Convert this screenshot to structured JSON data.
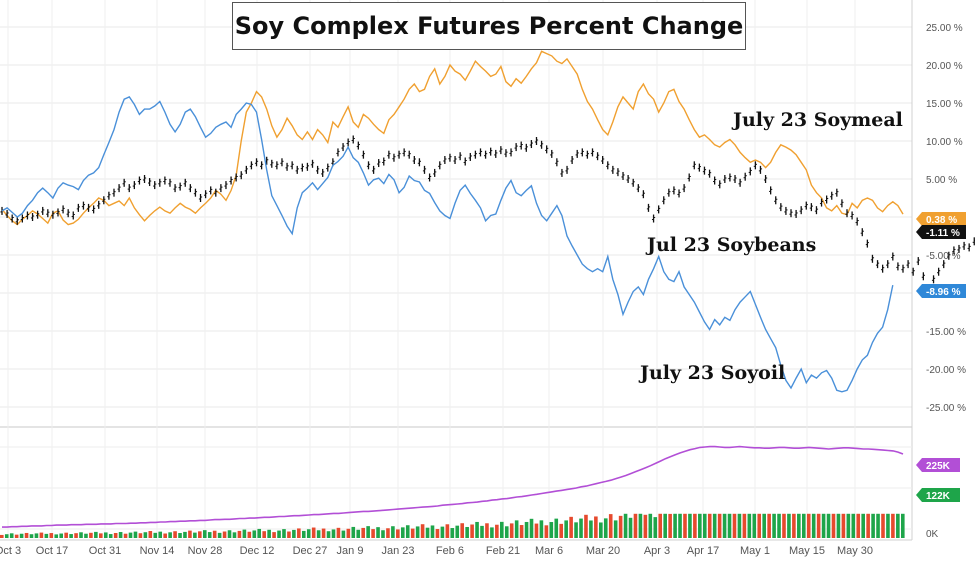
{
  "chart_data": {
    "type": "line",
    "title": "Soy Complex Futures Percent Change",
    "ylim": [
      -27,
      27
    ],
    "y_ticks": [
      25,
      20,
      15,
      10,
      5,
      0,
      -5,
      -10,
      -15,
      -20,
      -25
    ],
    "y_tick_labels": [
      "25.00 %",
      "20.00 %",
      "15.00 %",
      "10.00 %",
      "5.00 %",
      "0.00 %",
      "-5.00 %",
      "-10.00 %",
      "-15.00 %",
      "-20.00 %",
      "-25.00 %"
    ],
    "x_tick_labels": [
      "Oct 3",
      "Oct 17",
      "Oct 31",
      "Nov 14",
      "Nov 28",
      "Dec 12",
      "Dec 27",
      "Jan 9",
      "Jan 23",
      "Feb 6",
      "Feb 21",
      "Mar 6",
      "Mar 20",
      "Apr 3",
      "Apr 17",
      "May 1",
      "May 15",
      "May 30"
    ],
    "grid": true,
    "series": [
      {
        "name": "July 23 Soymeal",
        "color": "#f0a030",
        "last_label": "0.38 %",
        "values": [
          1,
          0.2,
          -0.5,
          -1,
          -0.3,
          0.2,
          0.8,
          0.4,
          -0.2,
          -0.8,
          0.5,
          0.8,
          -0.4,
          -1,
          -0.8,
          -0.3,
          0.5,
          1.2,
          1.8,
          2.5,
          2.2,
          1.5,
          1.8,
          2.1,
          1.5,
          2.5,
          1.2,
          0.3,
          -0.5,
          0.2,
          0.8,
          1.3,
          0.8,
          0.5,
          1.2,
          1.8,
          1.3,
          1,
          0.5,
          1.2,
          1.8,
          2.5,
          3.5,
          3,
          2.2,
          3.5,
          5.5,
          10,
          13.8,
          15,
          16.5,
          15.8,
          14.2,
          12,
          10.5,
          11.5,
          13,
          12,
          10.8,
          10.2,
          11.2,
          10.2,
          11.5,
          10.8,
          9.8,
          12.5,
          11.8,
          13.2,
          14.5,
          12.5,
          11.8,
          13.5,
          13,
          12.2,
          11.5,
          11,
          12.8,
          13.5,
          14.5,
          15.5,
          16.8,
          17.5,
          16.5,
          16.8,
          18.5,
          19.5,
          17.5,
          18.5,
          20,
          19.2,
          18.8,
          18,
          19.2,
          20.5,
          19.8,
          19.2,
          18.5,
          18.8,
          19.8,
          17.8,
          17.2,
          18.2,
          17.6,
          18.5,
          19.5,
          20.3,
          21.8,
          21.5,
          21.2,
          20.5,
          20.2,
          20.8,
          19.8,
          18.8,
          16.8,
          15.2,
          14.2,
          12.8,
          11.5,
          10.8,
          12.5,
          14.5,
          15.8,
          15,
          14.2,
          16.5,
          17.5,
          16.2,
          15.5,
          13.8,
          15,
          16.5,
          16.8,
          15.2,
          14.2,
          12.8,
          11.5,
          10.5,
          10.8,
          10.2,
          9.5,
          9.2,
          9.8,
          10.2,
          9.5,
          8.5,
          7.8,
          7.2,
          7.5,
          7.2,
          6.5,
          7.2,
          8.5,
          9.5,
          9.2,
          8.8,
          8.2,
          7.2,
          6.2,
          4.2,
          3.2,
          2.5,
          1.2,
          0.8,
          1.5,
          0.5,
          0.3,
          1.8,
          1.2,
          2.2,
          2.5,
          2.2,
          1.2,
          0.7,
          1.5,
          2,
          1.5,
          0.38
        ]
      },
      {
        "name": "Jul 23 Soybeans",
        "color": "#111111",
        "last_label": "-1.11 %",
        "values": [
          0.8,
          0.4,
          -0.2,
          -0.5,
          -0.2,
          0.2,
          0,
          0.3,
          0.8,
          0.5,
          0.3,
          0.6,
          1,
          0.5,
          0.2,
          1.2,
          1.5,
          1.2,
          1,
          1.6,
          2.2,
          2.8,
          3.2,
          3.8,
          4.5,
          3.8,
          4.2,
          4.8,
          5,
          4.6,
          4.2,
          4.5,
          4.8,
          4.5,
          3.8,
          4,
          4.5,
          3.8,
          3.2,
          2.5,
          3,
          3.5,
          3.2,
          3.8,
          4.2,
          4.8,
          5.2,
          5.5,
          6.2,
          6.8,
          7.2,
          6.8,
          7.4,
          7,
          6.8,
          7.2,
          6.6,
          6.8,
          6.2,
          6.5,
          6.6,
          7,
          6.2,
          5.8,
          6.5,
          7.2,
          8.5,
          9.2,
          9.8,
          10.2,
          9.4,
          8.2,
          6.8,
          6.2,
          7.1,
          7.3,
          8.2,
          7.8,
          8.2,
          8.5,
          8.2,
          7.5,
          7.2,
          6.2,
          5.2,
          5.8,
          6.8,
          7.5,
          7.8,
          7.5,
          8,
          7.3,
          7.9,
          8.2,
          8.5,
          8.2,
          8.6,
          8.3,
          8.8,
          8.4,
          8.5,
          9.2,
          9.4,
          9.1,
          9.6,
          10,
          9.5,
          8.9,
          8.3,
          7.2,
          5.8,
          6.2,
          7.5,
          8.3,
          8.5,
          8.2,
          8.5,
          8,
          7.5,
          6.8,
          6.2,
          5.9,
          5.4,
          5,
          4.5,
          3.8,
          3,
          1.2,
          -0.2,
          1,
          2.2,
          3.2,
          3.5,
          3.1,
          3.8,
          5.2,
          6.8,
          6.5,
          6.1,
          5.7,
          4.8,
          4.3,
          5,
          5.2,
          5,
          4.5,
          5.3,
          6,
          6.8,
          6.2,
          5,
          3.5,
          2.2,
          1.3,
          0.8,
          0.5,
          0.4,
          0.9,
          1.5,
          1.3,
          0.9,
          1.9,
          2.3,
          2.8,
          3.2,
          1.8,
          0.5,
          0.2,
          -0.6,
          -2,
          -3.5,
          -5.5,
          -6.2,
          -6.8,
          -6.2,
          -5.2,
          -6.5,
          -6.8,
          -6.2,
          -7.2,
          -5.8,
          -7.8,
          -10,
          -8.2,
          -7.2,
          -6.2,
          -5.1,
          -4.4,
          -4.2,
          -3.8,
          -4,
          -3.2,
          -2.5,
          -1.11
        ]
      },
      {
        "name": "July 23 Soyoil",
        "color": "#4a90d9",
        "last_label": "-8.96 %",
        "values": [
          0.8,
          1.2,
          0.6,
          0,
          0.5,
          1.5,
          2.2,
          3.2,
          3.8,
          3.2,
          2.5,
          3.8,
          4.5,
          4.2,
          4,
          3.6,
          4.8,
          5.5,
          5.8,
          6.5,
          8.2,
          9.8,
          11.5,
          13.8,
          15.5,
          15.8,
          14.8,
          13.5,
          14.2,
          14.2,
          14.6,
          15.2,
          13.8,
          12.2,
          11.2,
          12.2,
          13.8,
          14.2,
          13.2,
          11.8,
          10.5,
          11,
          11.8,
          12.2,
          12.5,
          11.8,
          13.5,
          14.2,
          15,
          14.8,
          13.8,
          10.2,
          6.2,
          2.8,
          1.5,
          0.2,
          -1.2,
          -2.2,
          1.2,
          3.2,
          3.8,
          4.5,
          3.6,
          4.4,
          5.2,
          6.8,
          7.3,
          8,
          9.2,
          7.8,
          7.2,
          5.8,
          4.2,
          4.9,
          5.1,
          4.4,
          5.6,
          4.9,
          3.2,
          3.9,
          5.4,
          4.8,
          4.6,
          3.5,
          3.1,
          1.9,
          0.8,
          0.2,
          -0.2,
          1.8,
          3.5,
          4.2,
          3.1,
          2.2,
          1.2,
          -0.5,
          0.2,
          0.4,
          2.2,
          3.8,
          4.8,
          3.2,
          2.8,
          3.5,
          4.1,
          1.8,
          0.2,
          -0.5,
          0.5,
          1.5,
          0.2,
          -2.5,
          -3.8,
          -5,
          -6.2,
          -6.8,
          -7.2,
          -6.8,
          -7.2,
          -5.2,
          -8.2,
          -10.2,
          -12.8,
          -11.2,
          -9.8,
          -9.2,
          -10.2,
          -8.2,
          -6.8,
          -5.2,
          -7.2,
          -8.2,
          -8.5,
          -7.2,
          -9.2,
          -10.2,
          -11.2,
          -12.5,
          -13.8,
          -14.8,
          -13.5,
          -14.2,
          -13.2,
          -13.6,
          -12.2,
          -11.2,
          -10.5,
          -9.8,
          -11.5,
          -13.2,
          -14.8,
          -16,
          -17.2,
          -19.5,
          -21.5,
          -22.5,
          -21.2,
          -20,
          -21.8,
          -20.8,
          -21.2,
          -20.5,
          -20.2,
          -21.2,
          -22.8,
          -23,
          -22.8,
          -21.5,
          -20,
          -18.8,
          -18.2,
          -16.5,
          -15.3,
          -14.5,
          -12.2,
          -8.96
        ]
      }
    ],
    "volume": {
      "ylim": [
        0,
        250
      ],
      "y_tick_labels": [
        "225K",
        "122K",
        "0K"
      ],
      "open_interest_label": "225K",
      "volume_label": "122K",
      "oi_color": "#b24fd6",
      "up_color": "#1ea54a",
      "down_color": "#e64a2e",
      "open_interest": [
        28,
        28,
        29,
        29,
        30,
        30,
        31,
        31,
        31,
        32,
        32,
        33,
        33,
        33,
        34,
        34,
        34,
        35,
        35,
        35,
        36,
        36,
        36,
        37,
        37,
        37,
        38,
        38,
        39,
        39,
        40,
        40,
        41,
        41,
        42,
        42,
        43,
        43,
        44,
        44,
        45,
        45,
        46,
        47,
        47,
        48,
        48,
        49,
        50,
        50,
        51,
        51,
        52,
        53,
        53,
        54,
        55,
        55,
        56,
        57,
        57,
        58,
        59,
        60,
        60,
        61,
        62,
        63,
        63,
        64,
        65,
        66,
        67,
        68,
        68,
        69,
        70,
        71,
        72,
        73,
        74,
        75,
        76,
        77,
        78,
        79,
        80,
        81,
        82,
        84,
        85,
        86,
        87,
        88,
        90,
        91,
        92,
        94,
        95,
        97,
        98,
        100,
        101,
        103,
        105,
        106,
        108,
        110,
        112,
        114,
        116,
        118,
        120,
        122,
        124,
        126,
        128,
        131,
        133,
        136,
        139,
        142,
        145,
        148,
        152,
        156,
        160,
        165,
        170,
        175,
        180,
        185,
        191,
        197,
        203,
        208,
        213,
        218,
        222,
        226,
        229,
        232,
        233,
        234,
        234,
        233,
        232,
        232,
        233,
        234,
        233,
        232,
        231,
        231,
        230,
        230,
        231,
        232,
        232,
        231,
        230,
        230,
        231,
        232,
        231,
        230,
        229,
        228,
        229,
        230,
        231,
        231,
        230,
        229,
        228,
        228,
        227,
        226,
        225,
        224,
        223,
        220,
        215
      ]
    }
  }
}
